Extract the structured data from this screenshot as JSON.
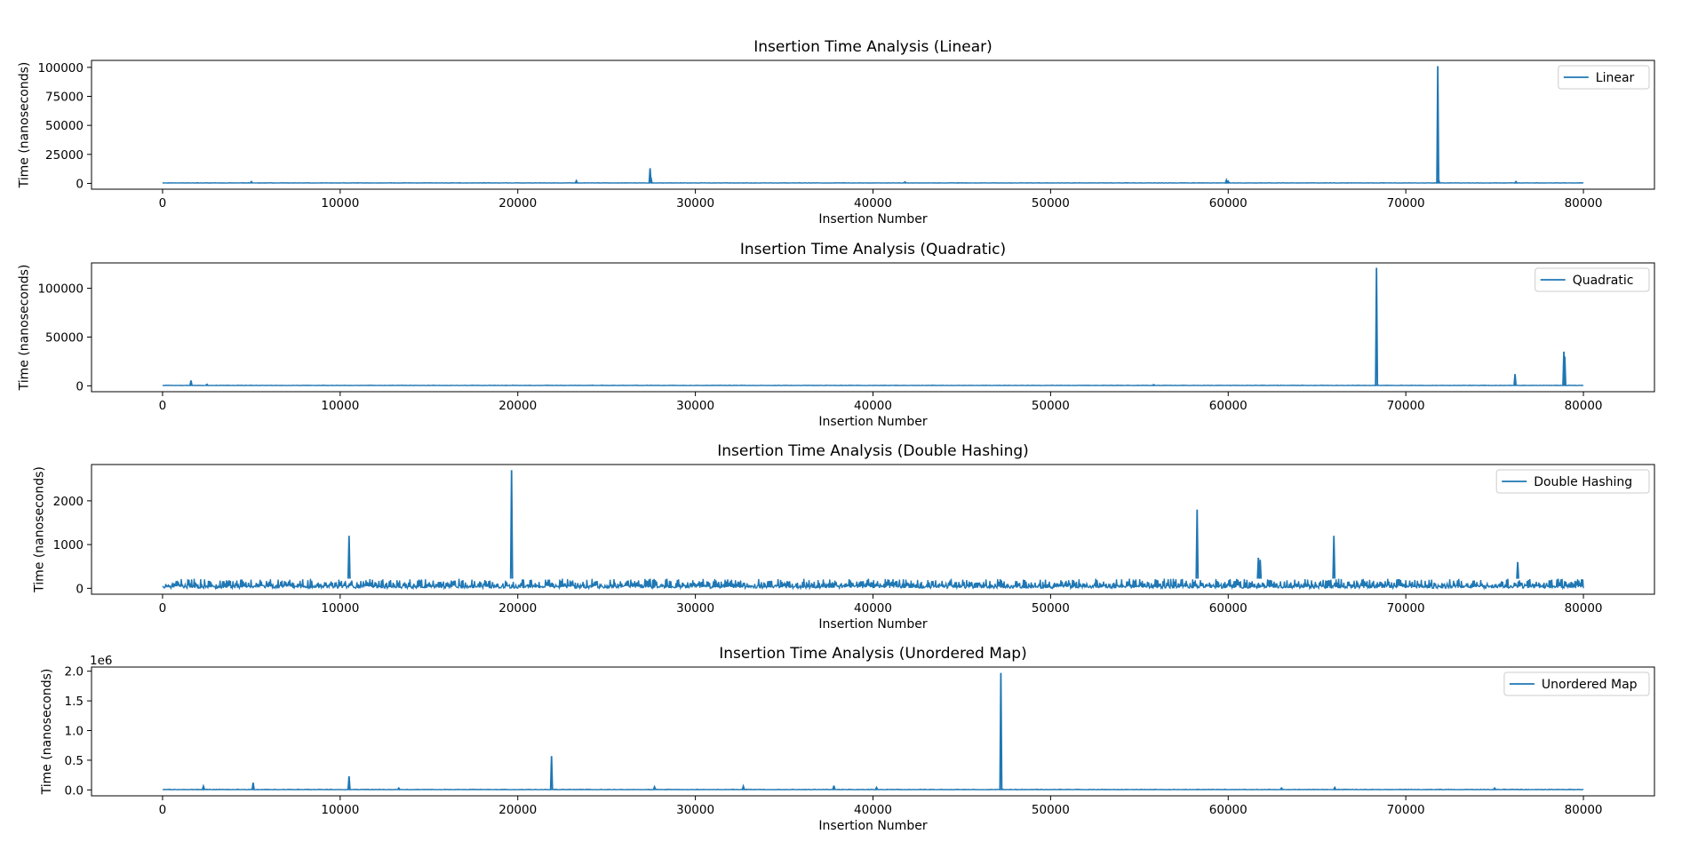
{
  "chart_data": [
    {
      "type": "line",
      "title": "Insertion Time Analysis (Linear)",
      "xlabel": "Insertion Number",
      "ylabel": "Time (nanoseconds)",
      "xlim": [
        -4000,
        84000
      ],
      "ylim": [
        -5000,
        106000
      ],
      "xticks": [
        0,
        10000,
        20000,
        30000,
        40000,
        50000,
        60000,
        70000,
        80000
      ],
      "yticks": [
        0,
        25000,
        50000,
        75000,
        100000
      ],
      "ytick_labels": [
        "0",
        "25000",
        "50000",
        "75000",
        "100000"
      ],
      "offset_text": "",
      "legend": "top-right",
      "series": [
        {
          "name": "Linear",
          "color": "#1f77b4",
          "baseline": [
            300,
            600
          ],
          "spikes": [
            {
              "x": 5000,
              "y": 1500
            },
            {
              "x": 23300,
              "y": 2200
            },
            {
              "x": 27450,
              "y": 13000
            },
            {
              "x": 27500,
              "y": 5000
            },
            {
              "x": 41800,
              "y": 1200
            },
            {
              "x": 59900,
              "y": 2800
            },
            {
              "x": 60000,
              "y": 1800
            },
            {
              "x": 71800,
              "y": 101000
            },
            {
              "x": 71850,
              "y": 3000
            },
            {
              "x": 76200,
              "y": 1500
            }
          ]
        }
      ]
    },
    {
      "type": "line",
      "title": "Insertion Time Analysis (Quadratic)",
      "xlabel": "Insertion Number",
      "ylabel": "Time (nanoseconds)",
      "xlim": [
        -4000,
        84000
      ],
      "ylim": [
        -6000,
        126000
      ],
      "xticks": [
        0,
        10000,
        20000,
        30000,
        40000,
        50000,
        60000,
        70000,
        80000
      ],
      "yticks": [
        0,
        50000,
        100000
      ],
      "ytick_labels": [
        "0",
        "50000",
        "100000"
      ],
      "offset_text": "",
      "legend": "top-right",
      "series": [
        {
          "name": "Quadratic",
          "color": "#1f77b4",
          "baseline": [
            300,
            700
          ],
          "spikes": [
            {
              "x": 1600,
              "y": 5500
            },
            {
              "x": 2500,
              "y": 1500
            },
            {
              "x": 55800,
              "y": 1200
            },
            {
              "x": 68350,
              "y": 121000
            },
            {
              "x": 76150,
              "y": 12000
            },
            {
              "x": 78900,
              "y": 35000
            },
            {
              "x": 78950,
              "y": 30000
            }
          ]
        }
      ]
    },
    {
      "type": "line",
      "title": "Insertion Time Analysis (Double Hashing)",
      "xlabel": "Insertion Number",
      "ylabel": "Time (nanoseconds)",
      "xlim": [
        -4000,
        84000
      ],
      "ylim": [
        -135,
        2830
      ],
      "xticks": [
        0,
        10000,
        20000,
        30000,
        40000,
        50000,
        60000,
        70000,
        80000
      ],
      "yticks": [
        0,
        1000,
        2000
      ],
      "ytick_labels": [
        "0",
        "1000",
        "2000"
      ],
      "offset_text": "",
      "legend": "top-right",
      "series": [
        {
          "name": "Double Hashing",
          "color": "#1f77b4",
          "baseline": [
            0,
            220
          ],
          "spikes": [
            {
              "x": 10500,
              "y": 1200
            },
            {
              "x": 19650,
              "y": 2700
            },
            {
              "x": 58250,
              "y": 1800
            },
            {
              "x": 61700,
              "y": 700
            },
            {
              "x": 61800,
              "y": 650
            },
            {
              "x": 65950,
              "y": 1200
            },
            {
              "x": 76300,
              "y": 600
            }
          ]
        }
      ]
    },
    {
      "type": "line",
      "title": "Insertion Time Analysis (Unordered Map)",
      "xlabel": "Insertion Number",
      "ylabel": "Time (nanoseconds)",
      "xlim": [
        -4000,
        84000
      ],
      "ylim": [
        -0.1,
        2.07
      ],
      "xticks": [
        0,
        10000,
        20000,
        30000,
        40000,
        50000,
        60000,
        70000,
        80000
      ],
      "yticks": [
        0,
        0.5,
        1.0,
        1.5,
        2.0
      ],
      "ytick_labels": [
        "0.0",
        "0.5",
        "1.0",
        "1.5",
        "2.0"
      ],
      "offset_text": "1e6",
      "legend": "top-right",
      "series": [
        {
          "name": "Unordered Map",
          "color": "#1f77b4",
          "baseline": [
            0.003,
            0.012
          ],
          "spikes": [
            {
              "x": 5100,
              "y": 0.12
            },
            {
              "x": 10500,
              "y": 0.23
            },
            {
              "x": 21900,
              "y": 0.57
            },
            {
              "x": 47200,
              "y": 1.97
            },
            {
              "x": 2300,
              "y": 0.06
            },
            {
              "x": 27700,
              "y": 0.05
            },
            {
              "x": 32700,
              "y": 0.06
            },
            {
              "x": 37800,
              "y": 0.07
            },
            {
              "x": 13300,
              "y": 0.03
            },
            {
              "x": 40200,
              "y": 0.04
            },
            {
              "x": 66000,
              "y": 0.04
            },
            {
              "x": 63000,
              "y": 0.03
            },
            {
              "x": 75000,
              "y": 0.03
            }
          ]
        }
      ]
    }
  ]
}
